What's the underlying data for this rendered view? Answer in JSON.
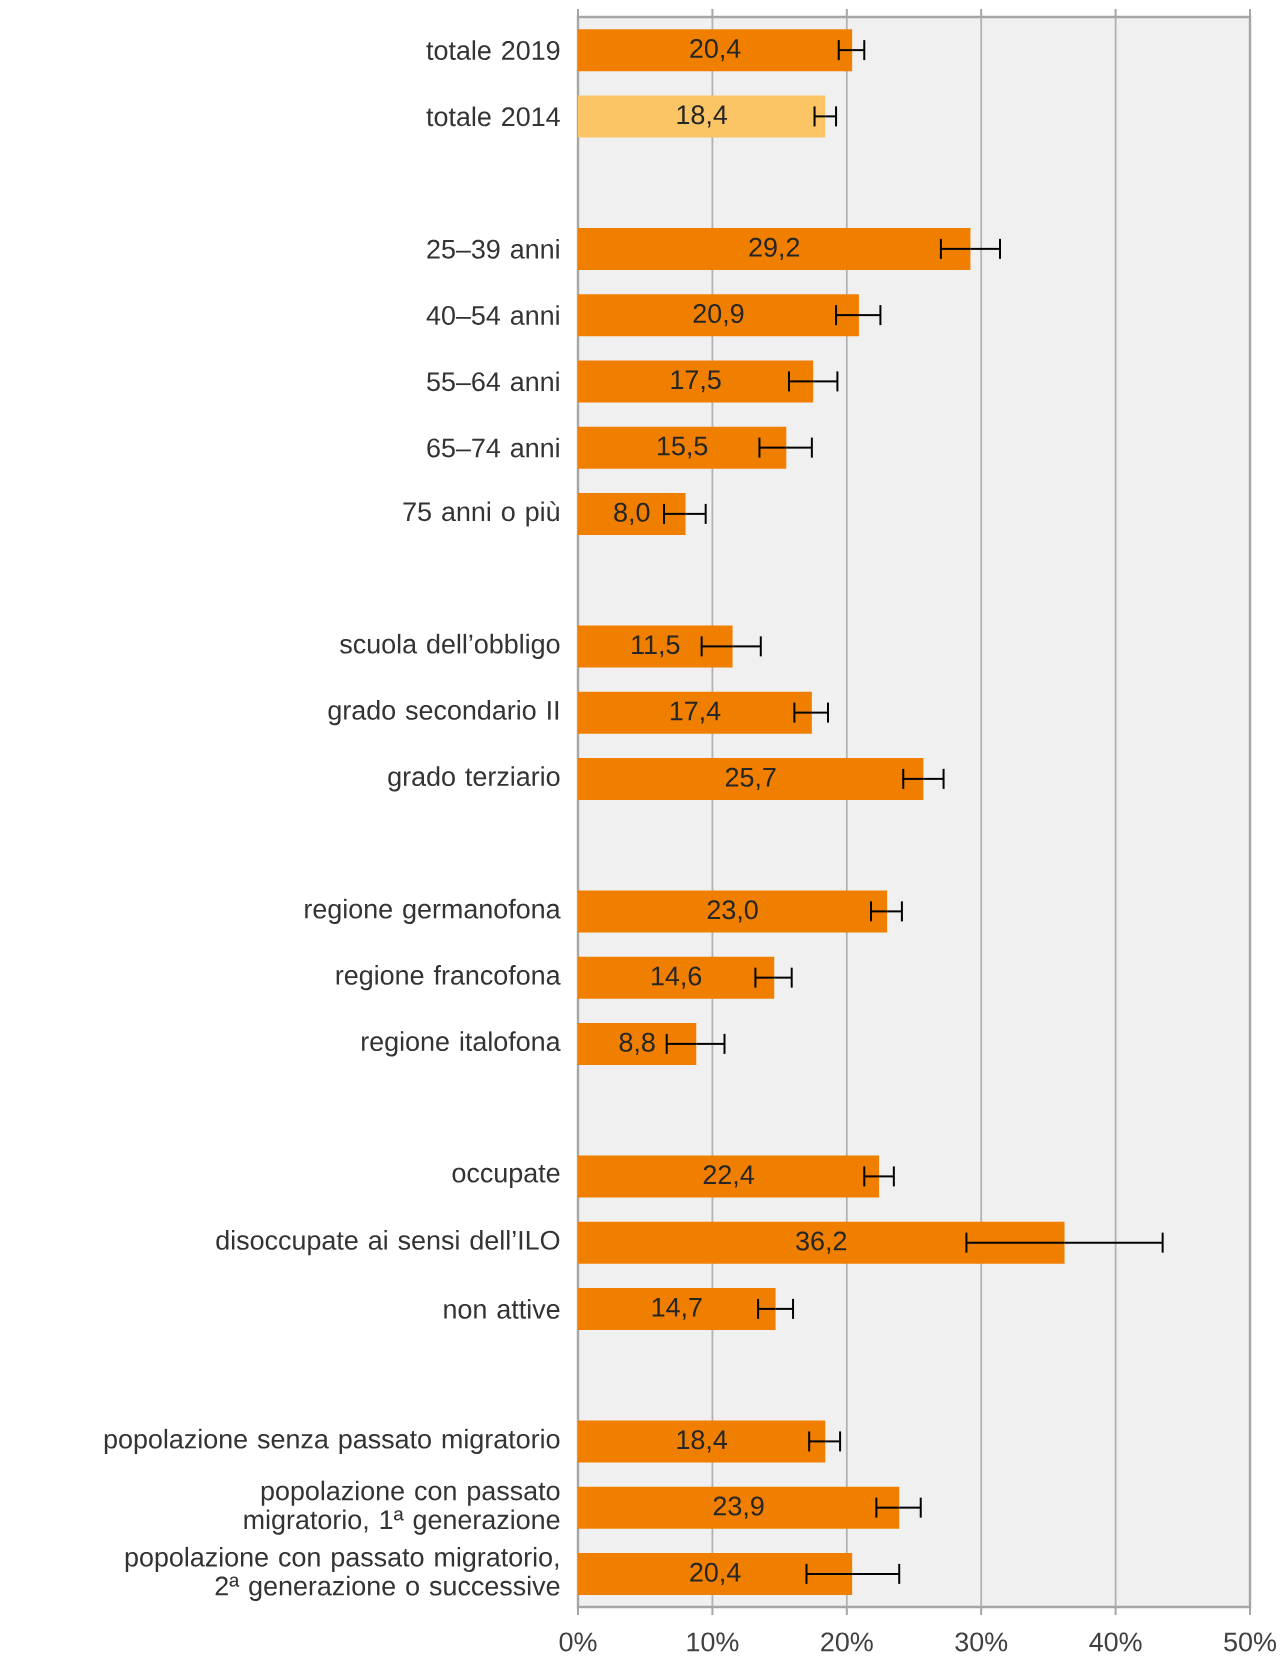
{
  "chart_data": {
    "type": "bar",
    "orientation": "horizontal",
    "grid": "x",
    "categories": [
      "totale 2019",
      "totale 2014",
      null,
      "25–39 anni",
      "40–54 anni",
      "55–64 anni",
      "65–74 anni",
      "75 anni o più",
      null,
      "scuola dell’obbligo",
      "grado secondario II",
      "grado terziario",
      null,
      "regione germanofona",
      "regione francofona",
      "regione italofona",
      null,
      "occupate",
      "disoccupate ai sensi dell’ILO",
      "non attive",
      null,
      "popolazione senza passato migratorio",
      "popolazione con passato migratorio, 1ª generazione",
      "popolazione con passato migratorio, 2ª generazione o successive"
    ],
    "values": [
      20.4,
      18.4,
      null,
      29.2,
      20.9,
      17.5,
      15.5,
      8.0,
      null,
      11.5,
      17.4,
      25.7,
      null,
      23.0,
      14.6,
      8.8,
      null,
      22.4,
      36.2,
      14.7,
      null,
      18.4,
      23.9,
      20.4
    ],
    "value_labels": [
      "20,4",
      "18,4",
      null,
      "29,2",
      "20,9",
      "17,5",
      "15,5",
      "8,0",
      null,
      "11,5",
      "17,4",
      "25,7",
      null,
      "23,0",
      "14,6",
      "8,8",
      null,
      "22,4",
      "36,2",
      "14,7",
      null,
      "18,4",
      "23,9",
      "20,4"
    ],
    "colors": [
      "#f07f00",
      "#fbc565",
      null,
      "#f07f00",
      "#f07f00",
      "#f07f00",
      "#f07f00",
      "#f07f00",
      null,
      "#f07f00",
      "#f07f00",
      "#f07f00",
      null,
      "#f07f00",
      "#f07f00",
      "#f07f00",
      null,
      "#f07f00",
      "#f07f00",
      "#f07f00",
      null,
      "#f07f00",
      "#f07f00",
      "#f07f00"
    ],
    "errors": [
      [
        19.4,
        21.3
      ],
      [
        17.6,
        19.2
      ],
      null,
      [
        27.0,
        31.4
      ],
      [
        19.2,
        22.5
      ],
      [
        15.7,
        19.3
      ],
      [
        13.5,
        17.4
      ],
      [
        6.4,
        9.5
      ],
      null,
      [
        9.2,
        13.6
      ],
      [
        16.1,
        18.6
      ],
      [
        24.2,
        27.2
      ],
      null,
      [
        21.8,
        24.1
      ],
      [
        13.2,
        15.9
      ],
      [
        6.6,
        10.9
      ],
      null,
      [
        21.3,
        23.5
      ],
      [
        28.9,
        43.5
      ],
      [
        13.4,
        16.0
      ],
      null,
      [
        17.2,
        19.5
      ],
      [
        22.2,
        25.5
      ],
      [
        17.0,
        23.9
      ]
    ],
    "xlim": [
      0,
      50
    ],
    "xticks": [
      {
        "value": 0,
        "label": "0%"
      },
      {
        "value": 10,
        "label": "10%"
      },
      {
        "value": 20,
        "label": "20%"
      },
      {
        "value": 30,
        "label": "30%"
      },
      {
        "value": 40,
        "label": "40%"
      },
      {
        "value": 50,
        "label": "50%"
      }
    ]
  }
}
